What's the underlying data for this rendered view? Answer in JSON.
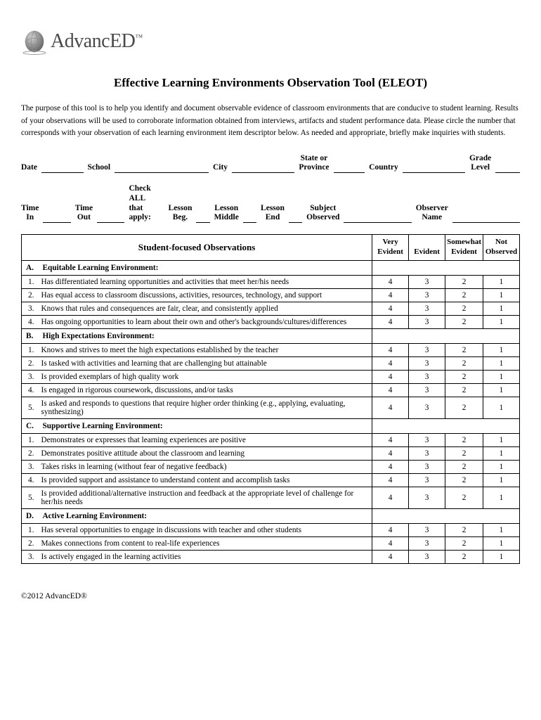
{
  "logo": {
    "alt": "AdvancED",
    "tm": "™"
  },
  "title": "Effective Learning Environments Observation Tool (ELEOT)",
  "purpose": "The purpose of this tool is to help you identify and document observable evidence of classroom environments that are conducive to student learning. Results of your observations will be used to corroborate information obtained from interviews, artifacts and student performance data. Please circle the number that corresponds with your observation of each learning environment item descriptor below. As needed and appropriate, briefly make inquiries with students.",
  "fields_row1": {
    "date": "Date",
    "school": "School",
    "city": "City",
    "state_l1": "State or",
    "state_l2": "Province",
    "country": "Country",
    "grade_l1": "Grade",
    "grade_l2": "Level"
  },
  "fields_row2": {
    "time_in_l1": "Time",
    "time_in_l2": "In",
    "time_out_l1": "Time",
    "time_out_l2": "Out",
    "check_l1": "Check ALL",
    "check_l2": "that apply:",
    "lesson_beg_l1": "Lesson",
    "lesson_beg_l2": "Beg.",
    "lesson_mid_l1": "Lesson",
    "lesson_mid_l2": "Middle",
    "lesson_end_l1": "Lesson",
    "lesson_end_l2": "End",
    "subject_l1": "Subject",
    "subject_l2": "Observed",
    "observer_l1": "Observer",
    "observer_l2": "Name"
  },
  "table": {
    "main_head": "Student-focused Observations",
    "col1_l1": "Very",
    "col1_l2": "Evident",
    "col2": "Evident",
    "col3_l1": "Somewhat",
    "col3_l2": "Evident",
    "col4_l1": "Not",
    "col4_l2": "Observed",
    "ratings": [
      "4",
      "3",
      "2",
      "1"
    ],
    "sections": [
      {
        "letter": "A.",
        "title": "Equitable Learning Environment:",
        "items": [
          "Has differentiated learning opportunities and activities that meet her/his needs",
          "Has equal access to classroom discussions, activities, resources, technology, and support",
          "Knows that rules and consequences are fair, clear, and consistently applied",
          "Has ongoing opportunities to learn about their own and other's backgrounds/cultures/differences"
        ]
      },
      {
        "letter": "B.",
        "title": "High Expectations Environment:",
        "items": [
          "Knows and strives to meet the high expectations established by the teacher",
          "Is tasked with activities and learning that are challenging but attainable",
          "Is provided exemplars of high quality work",
          "Is engaged in rigorous coursework, discussions, and/or tasks",
          "Is asked and responds to questions that require higher order thinking (e.g., applying, evaluating, synthesizing)"
        ]
      },
      {
        "letter": "C.",
        "title": "Supportive Learning Environment:",
        "items": [
          "Demonstrates or expresses that learning experiences are positive",
          "Demonstrates positive attitude about the classroom and learning",
          "Takes risks in learning (without fear of negative feedback)",
          "Is provided support and assistance to understand content and accomplish tasks",
          "Is provided additional/alternative instruction and feedback at the appropriate level of challenge for her/his needs"
        ]
      },
      {
        "letter": "D.",
        "title": "Active Learning Environment:",
        "items": [
          "Has several opportunities to engage in discussions with teacher and other students",
          "Makes connections from content to real-life experiences",
          "Is actively engaged in the learning activities"
        ]
      }
    ]
  },
  "footer": "©2012 AdvancED®"
}
